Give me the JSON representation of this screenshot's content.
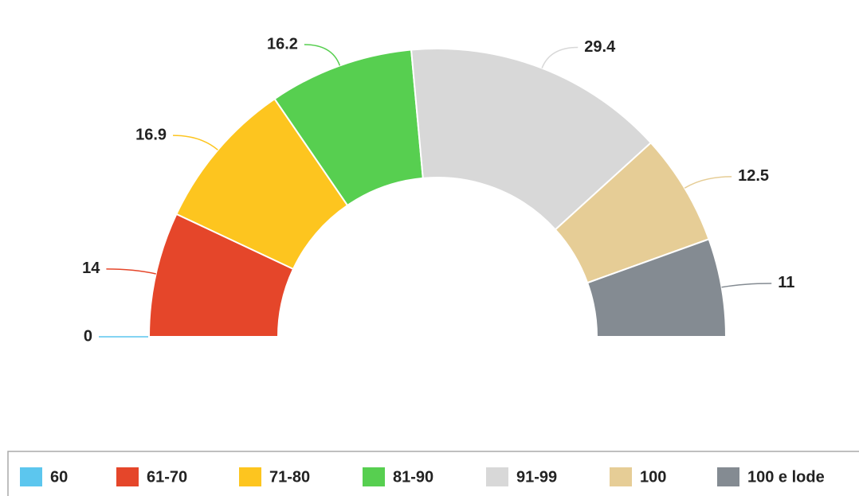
{
  "chart_data": {
    "type": "pie",
    "categories": [
      "60",
      "61-70",
      "71-80",
      "81-90",
      "91-99",
      "100",
      "100 e lode"
    ],
    "values": [
      0,
      14,
      16.9,
      16.2,
      29.4,
      12.5,
      11
    ],
    "colors": [
      "#5cc6ee",
      "#e5462a",
      "#fdc51f",
      "#57cf50",
      "#d8d8d8",
      "#e6cd96",
      "#848b92"
    ],
    "legend": "bottom"
  }
}
